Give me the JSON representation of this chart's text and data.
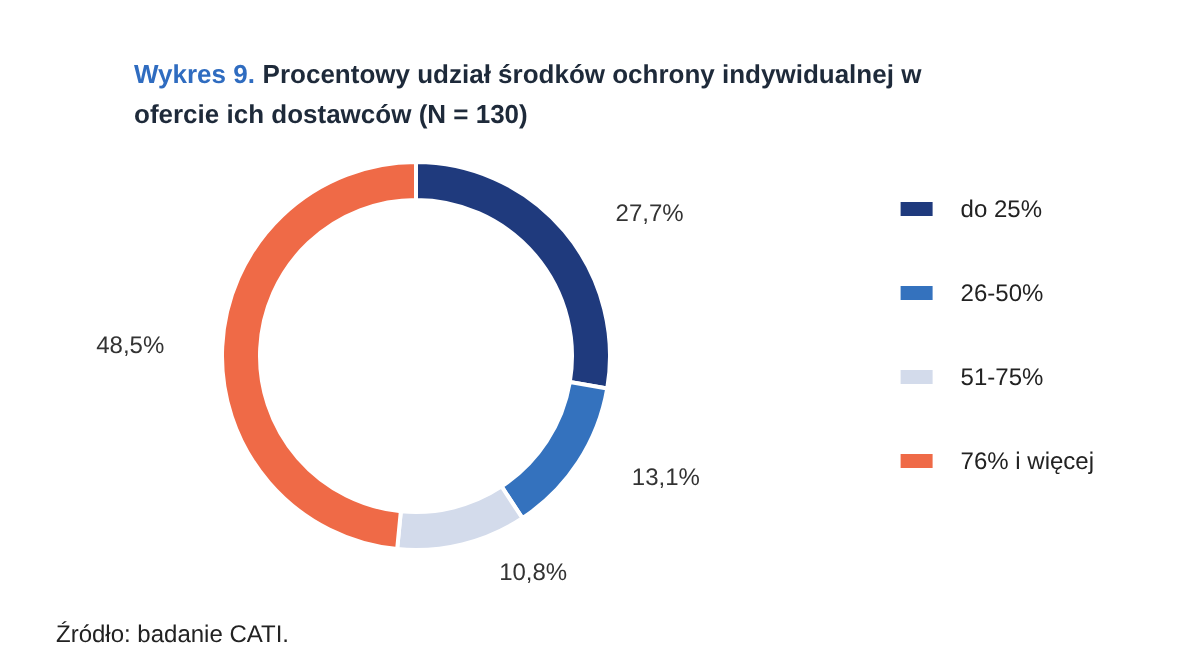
{
  "chart_data": {
    "type": "donut",
    "title": "Wykres 9. Procentowy udział środków ochrony indywidualnej w ofercie ich dostawców (N = 130)",
    "categories": [
      "do 25%",
      "26-50%",
      "51-75%",
      "76% i więcej"
    ],
    "values": [
      27.7,
      13.1,
      10.8,
      48.5
    ],
    "value_labels": [
      "27,7%",
      "13,1%",
      "10,8%",
      "48,5%"
    ],
    "colors": [
      "#1f3a7d",
      "#3472be",
      "#d3dbeb",
      "#ef6a47"
    ],
    "legend": "right",
    "annotations": [
      "Źródło: badanie CATI."
    ]
  }
}
